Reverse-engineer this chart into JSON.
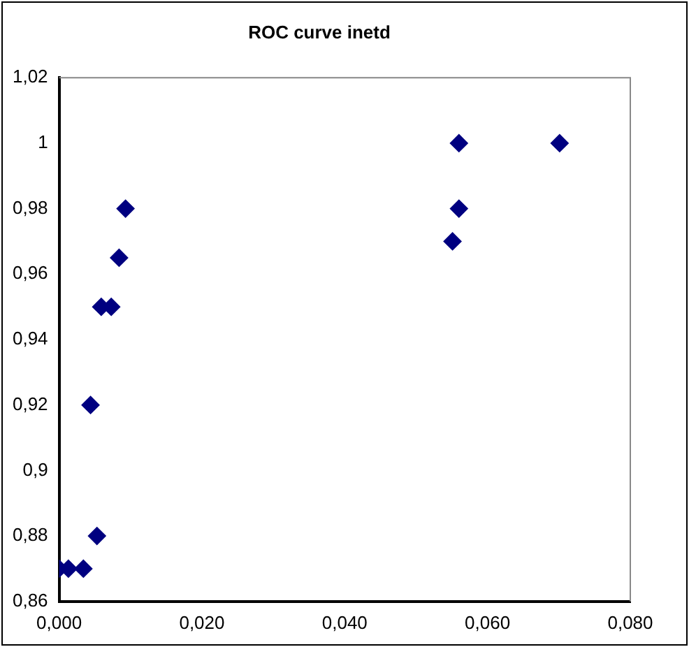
{
  "chart_data": {
    "type": "scatter",
    "title": "ROC curve inetd",
    "x": [
      0,
      0.0013,
      0.0034,
      0.0053,
      0.0044,
      0.0059,
      0.0073,
      0.0084,
      0.0093,
      0.0551,
      0.056,
      0.056,
      0.0701
    ],
    "values": [
      0.87,
      0.87,
      0.87,
      0.88,
      0.92,
      0.95,
      0.95,
      0.965,
      0.98,
      0.97,
      0.98,
      1,
      1
    ],
    "color": "#000080",
    "marker": "diamond",
    "xlim": [
      0,
      0.08
    ],
    "xticks": [
      {
        "value": 0,
        "label": "0,000"
      },
      {
        "value": 0.02,
        "label": "0,020"
      },
      {
        "value": 0.04,
        "label": "0,040"
      },
      {
        "value": 0.06,
        "label": "0,060"
      },
      {
        "value": 0.08,
        "label": "0,080"
      }
    ],
    "ylim": [
      0.86,
      1.02
    ],
    "yticks": [
      {
        "value": 0.86,
        "label": "0,86"
      },
      {
        "value": 0.88,
        "label": "0,88"
      },
      {
        "value": 0.9,
        "label": "0,9"
      },
      {
        "value": 0.92,
        "label": "0,92"
      },
      {
        "value": 0.94,
        "label": "0,94"
      },
      {
        "value": 0.96,
        "label": "0,96"
      },
      {
        "value": 0.98,
        "label": "0,98"
      },
      {
        "value": 1,
        "label": "1"
      },
      {
        "value": 1.02,
        "label": "1,02"
      }
    ],
    "grid": false,
    "legend": false
  }
}
